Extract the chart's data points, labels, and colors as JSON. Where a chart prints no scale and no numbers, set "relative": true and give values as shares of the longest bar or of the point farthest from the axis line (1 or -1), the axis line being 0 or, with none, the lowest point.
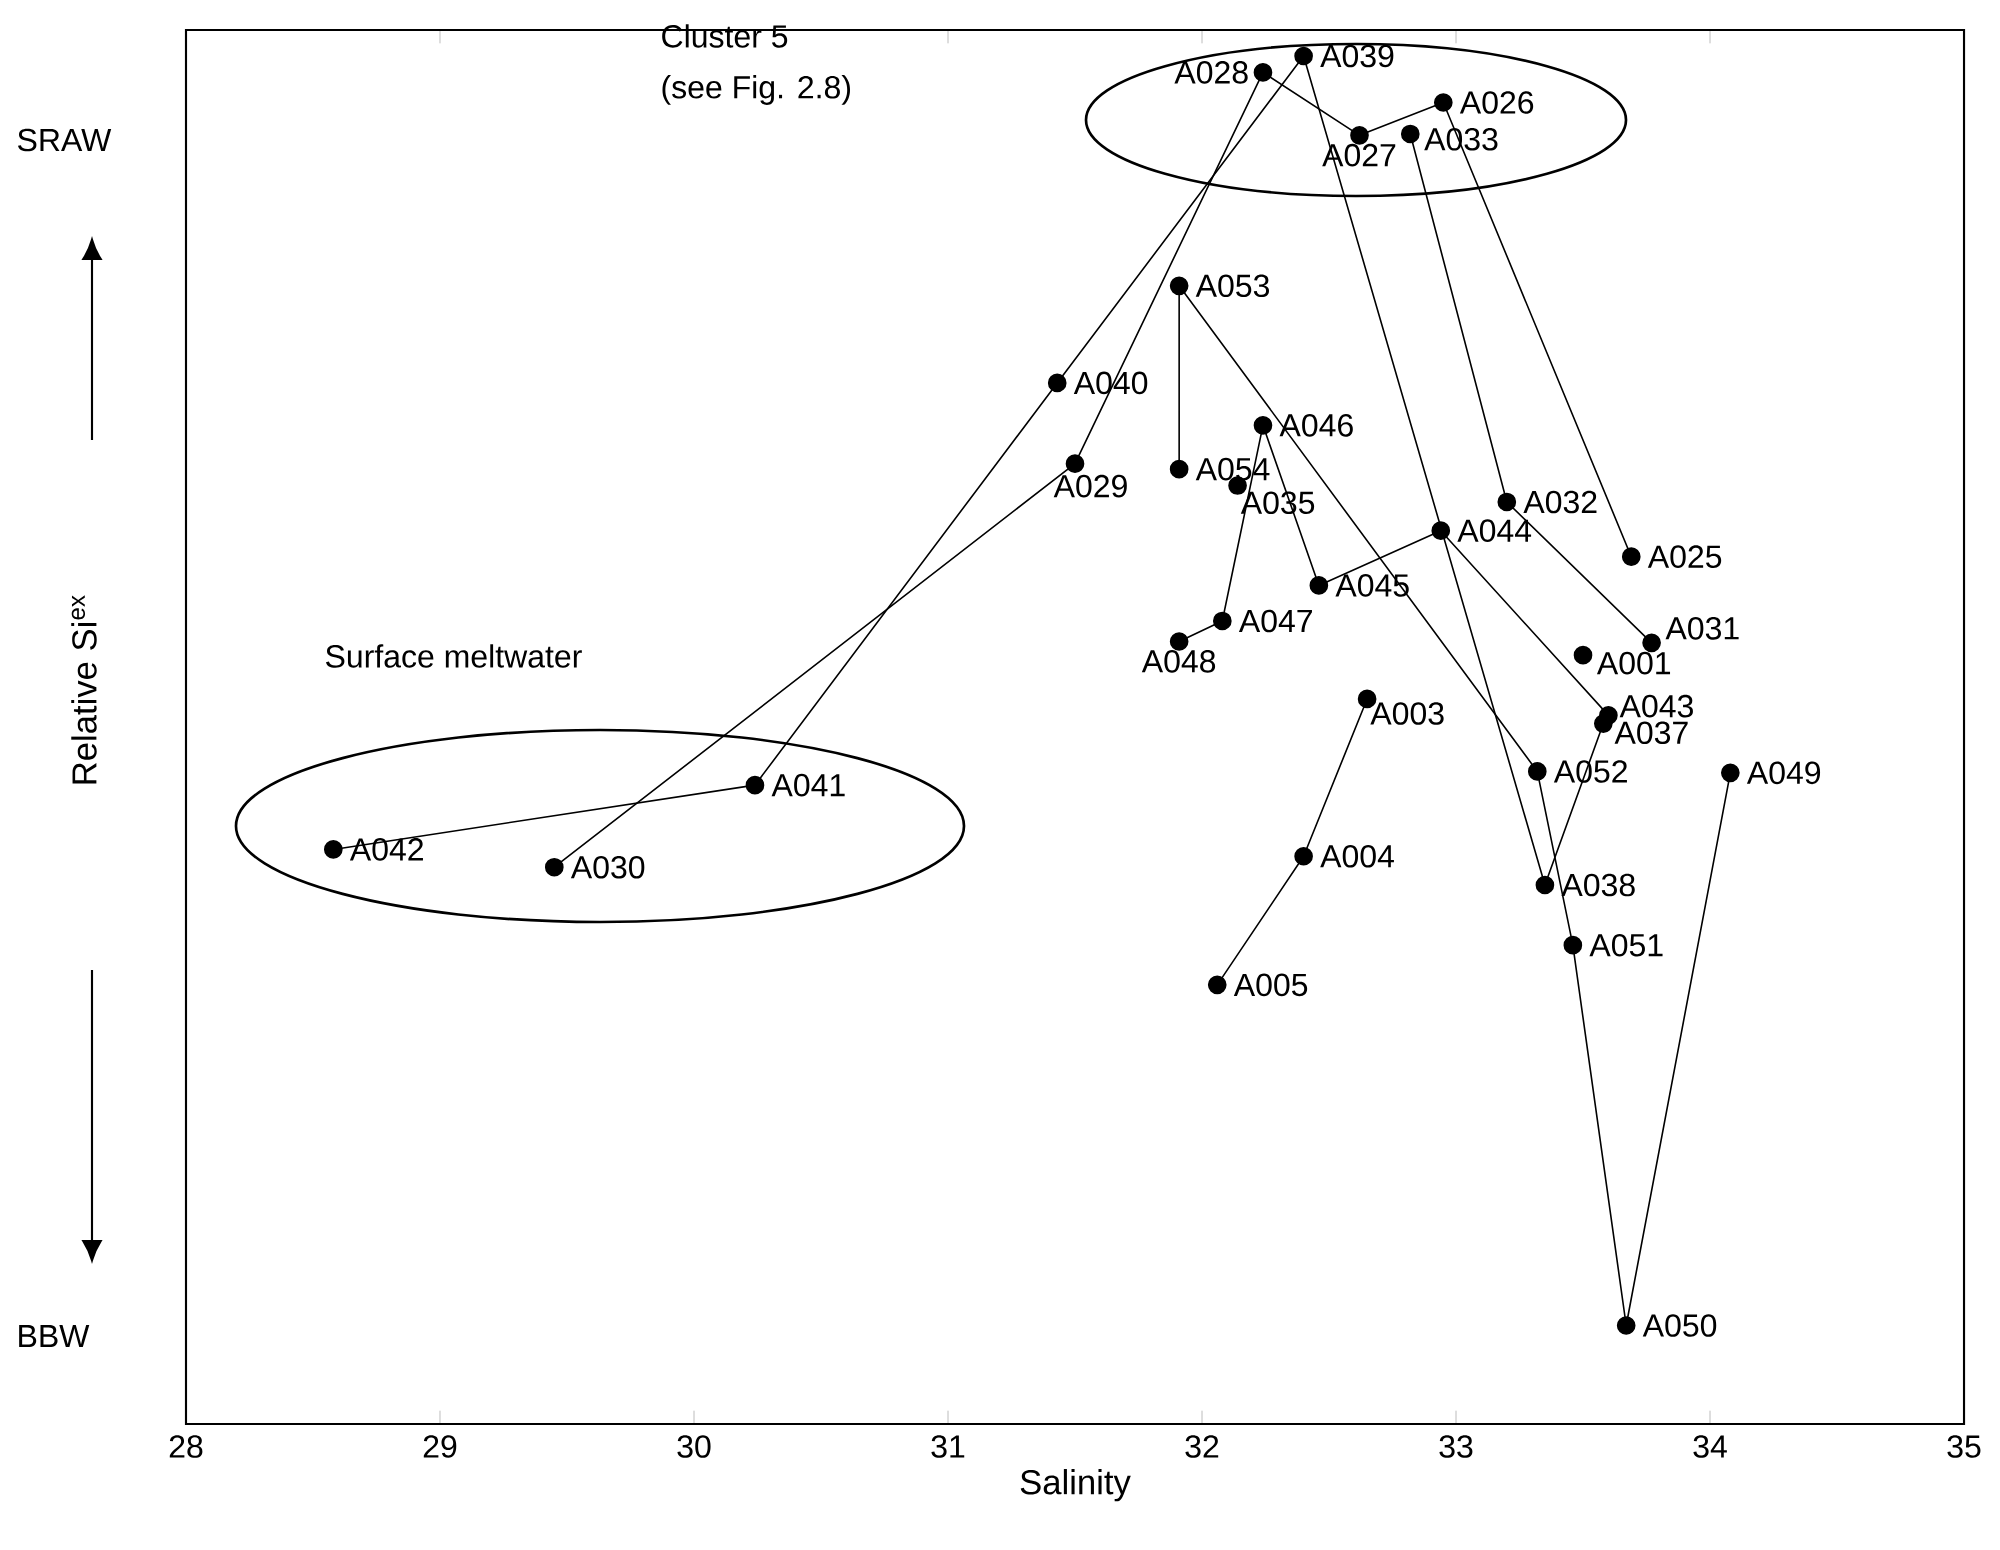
{
  "chart_data": {
    "type": "line",
    "relative": true,
    "xlabel": "Salinity",
    "ylabel": "Relative Si$^{ex}$",
    "xlim": [
      28,
      35
    ],
    "xticks": [
      28,
      29,
      30,
      31,
      32,
      33,
      34,
      35
    ],
    "marker": "circle",
    "line_style": "solid",
    "grid": false,
    "series": [
      {
        "color": "#000000",
        "x": [
          32.65,
          32.4,
          32.06
        ],
        "values": [
          0.53,
          0.415,
          0.321
        ]
      },
      {
        "color": "#000000",
        "x": [
          33.69,
          32.95,
          32.62,
          32.24,
          31.5,
          29.45
        ],
        "values": [
          0.634,
          0.966,
          0.942,
          0.988,
          0.702,
          0.407
        ]
      },
      {
        "color": "#000000",
        "x": [
          33.77,
          33.2,
          32.82
        ],
        "values": [
          0.571,
          0.674,
          0.943
        ]
      },
      {
        "color": "#000000",
        "x": [
          33.58,
          33.35,
          32.4,
          31.43,
          30.24,
          28.58
        ],
        "values": [
          0.512,
          0.394,
          1.0,
          0.761,
          0.467,
          0.42
        ]
      },
      {
        "color": "#000000",
        "x": [
          33.6,
          32.94,
          32.46,
          32.24,
          32.08,
          31.91
        ],
        "values": [
          0.518,
          0.653,
          0.613,
          0.73,
          0.587,
          0.572
        ]
      },
      {
        "color": "#000000",
        "x": [
          34.08,
          33.67,
          33.46,
          33.32,
          31.91,
          31.91
        ],
        "values": [
          0.476,
          0.072,
          0.35,
          0.477,
          0.832,
          0.698
        ]
      },
      {
        "type": "scatter",
        "color": "#000000",
        "x": [
          33.5,
          32.14
        ],
        "values": [
          0.562,
          0.686
        ]
      }
    ],
    "annotations": [
      "Cluster 5",
      "(see Fig. 2.8)",
      "Surface meltwater",
      "SRAW",
      "BBW",
      {
        "text": "A001",
        "x": 33.5,
        "y": 0.562
      },
      {
        "text": "A003",
        "x": 32.65,
        "y": 0.53
      },
      {
        "text": "A004",
        "x": 32.4,
        "y": 0.415
      },
      {
        "text": "A005",
        "x": 32.06,
        "y": 0.321
      },
      {
        "text": "A025",
        "x": 33.69,
        "y": 0.634
      },
      {
        "text": "A026",
        "x": 32.95,
        "y": 0.966
      },
      {
        "text": "A027",
        "x": 32.62,
        "y": 0.942
      },
      {
        "text": "A028",
        "x": 32.24,
        "y": 0.988
      },
      {
        "text": "A029",
        "x": 31.5,
        "y": 0.702
      },
      {
        "text": "A030",
        "x": 29.45,
        "y": 0.407
      },
      {
        "text": "A031",
        "x": 33.77,
        "y": 0.571
      },
      {
        "text": "A032",
        "x": 33.2,
        "y": 0.674
      },
      {
        "text": "A033",
        "x": 32.82,
        "y": 0.943
      },
      {
        "text": "A035",
        "x": 32.14,
        "y": 0.686
      },
      {
        "text": "A037",
        "x": 33.58,
        "y": 0.512
      },
      {
        "text": "A038",
        "x": 33.35,
        "y": 0.394
      },
      {
        "text": "A039",
        "x": 32.4,
        "y": 1.0
      },
      {
        "text": "A040",
        "x": 31.43,
        "y": 0.761
      },
      {
        "text": "A041",
        "x": 30.24,
        "y": 0.467
      },
      {
        "text": "A042",
        "x": 28.58,
        "y": 0.42
      },
      {
        "text": "A043",
        "x": 33.6,
        "y": 0.518
      },
      {
        "text": "A044",
        "x": 32.94,
        "y": 0.653
      },
      {
        "text": "A045",
        "x": 32.46,
        "y": 0.613
      },
      {
        "text": "A046",
        "x": 32.24,
        "y": 0.73
      },
      {
        "text": "A047",
        "x": 32.08,
        "y": 0.587
      },
      {
        "text": "A048",
        "x": 31.91,
        "y": 0.572
      },
      {
        "text": "A049",
        "x": 34.08,
        "y": 0.476
      },
      {
        "text": "A050",
        "x": 33.67,
        "y": 0.072
      },
      {
        "text": "A051",
        "x": 33.46,
        "y": 0.35
      },
      {
        "text": "A052",
        "x": 33.32,
        "y": 0.477
      },
      {
        "text": "A053",
        "x": 31.91,
        "y": 0.832
      },
      {
        "text": "A054",
        "x": 31.91,
        "y": 0.698
      }
    ]
  }
}
